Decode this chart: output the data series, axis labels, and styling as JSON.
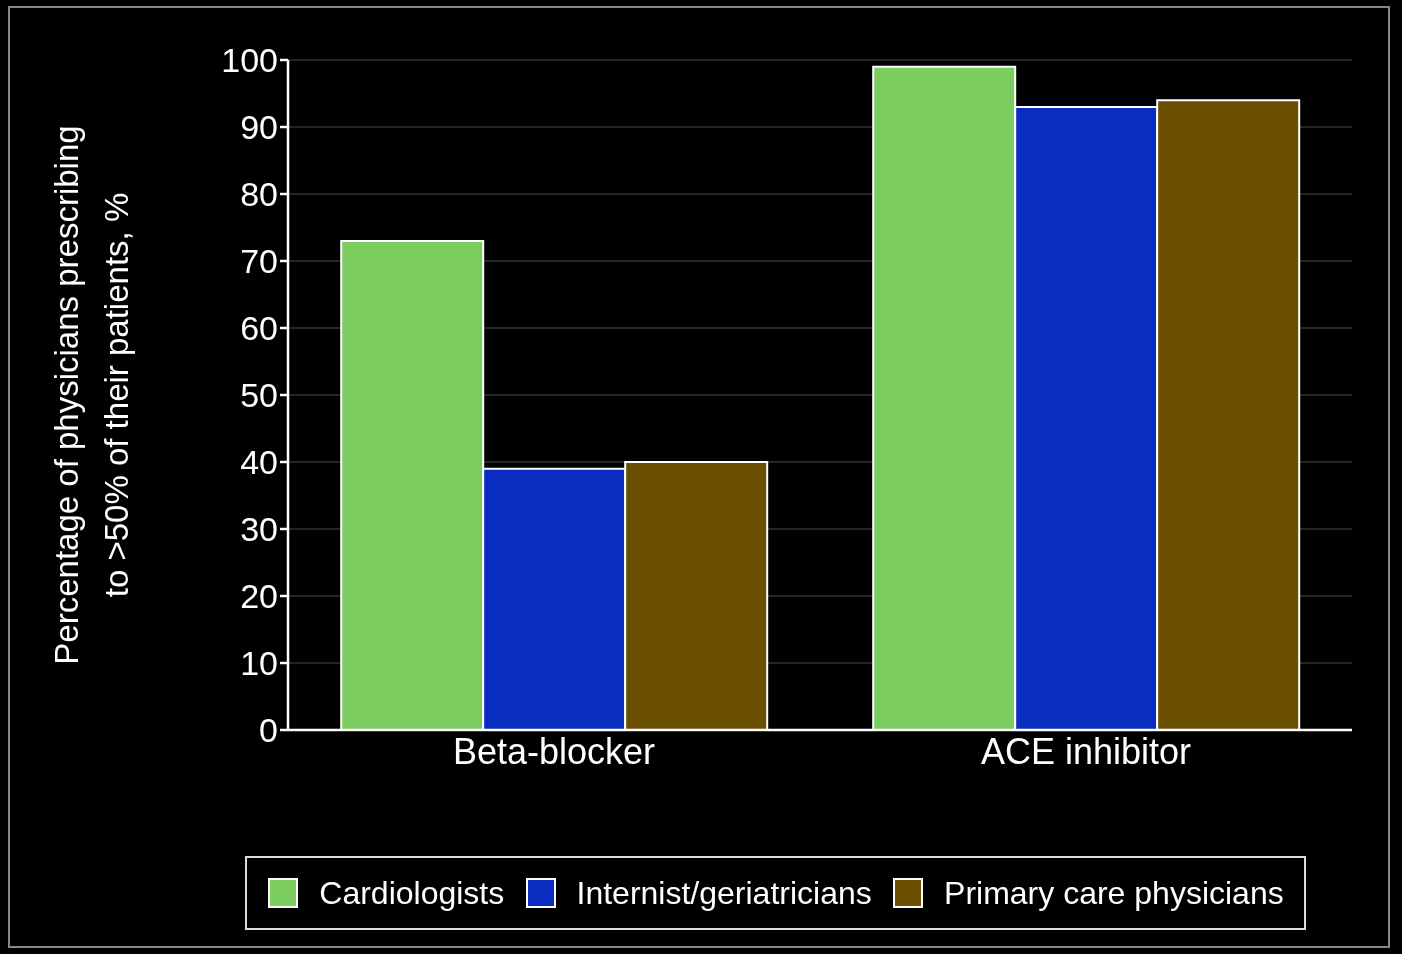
{
  "chart_data": {
    "type": "bar",
    "categories": [
      "Beta-blocker",
      "ACE inhibitor"
    ],
    "ylabel": "Percentage of physicians prescribing\nto >50% of their patients, %",
    "series": [
      {
        "name": "Cardiologists",
        "color": "#7ccd5f",
        "values": [
          73,
          99
        ]
      },
      {
        "name": "Internist/geriatricians",
        "color": "#0a2cc0",
        "values": [
          39,
          93
        ]
      },
      {
        "name": "Primary care physicians",
        "color": "#6a5000",
        "values": [
          40,
          94
        ]
      }
    ],
    "ylim": [
      0,
      100
    ],
    "yticks": [
      0,
      10,
      20,
      30,
      40,
      50,
      60,
      70,
      80,
      90,
      100
    ],
    "grid": "y",
    "legend": "bottom"
  }
}
